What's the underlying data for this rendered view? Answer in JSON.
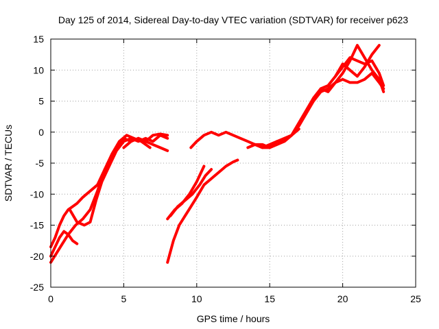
{
  "chart_data": {
    "type": "line",
    "title": "Day 125 of 2014, Sidereal Day-to-day VTEC variation (SDTVAR) for receiver p623",
    "xlabel": "GPS time / hours",
    "ylabel": "SDTVAR / TECUs",
    "xlim": [
      0,
      25
    ],
    "ylim": [
      -25,
      15
    ],
    "xticks": [
      0,
      5,
      10,
      15,
      20,
      25
    ],
    "yticks": [
      -25,
      -20,
      -15,
      -10,
      -5,
      0,
      5,
      10,
      15
    ],
    "grid": true,
    "legend": "none",
    "colors": {
      "series": "#ff0000",
      "grid": "#a0a0a0",
      "axis": "#000000"
    },
    "series": [
      {
        "x": [
          0.0,
          0.3,
          0.6,
          0.9,
          1.2,
          1.5,
          1.8,
          2.2,
          2.7,
          3.2,
          3.7,
          4.2,
          4.7,
          5.0,
          5.5,
          6.0,
          6.5
        ],
        "y": [
          -18.5,
          -17.0,
          -15.0,
          -13.5,
          -12.5,
          -12.0,
          -11.5,
          -10.5,
          -9.5,
          -8.5,
          -6.0,
          -4.0,
          -2.0,
          -1.0,
          -1.5,
          -1.0,
          -1.5
        ]
      },
      {
        "x": [
          0.0,
          0.4,
          0.8,
          1.2,
          1.7,
          2.2,
          2.7,
          3.2,
          3.7,
          4.2,
          4.7,
          5.2,
          5.7,
          6.2,
          6.8
        ],
        "y": [
          -21.0,
          -19.5,
          -18.0,
          -16.5,
          -15.0,
          -14.0,
          -12.5,
          -9.5,
          -6.0,
          -3.5,
          -1.5,
          -0.5,
          -1.0,
          -1.5,
          -2.5
        ]
      },
      {
        "x": [
          0.0,
          0.3,
          0.6,
          0.9,
          1.2,
          1.5,
          1.8
        ],
        "y": [
          -20.0,
          -18.5,
          -17.0,
          -16.0,
          -16.5,
          -17.5,
          -18.0
        ]
      },
      {
        "x": [
          1.3,
          1.8,
          2.3,
          2.7,
          3.1,
          3.5,
          4.0,
          4.5,
          5.0,
          5.5,
          6.0,
          6.5,
          7.0,
          7.5,
          8.0
        ],
        "y": [
          -12.5,
          -14.5,
          -15.0,
          -14.5,
          -11.0,
          -8.0,
          -5.5,
          -3.0,
          -1.5,
          -1.0,
          -1.5,
          -1.0,
          -1.5,
          -0.5,
          -1.0
        ]
      },
      {
        "x": [
          5.0,
          5.5,
          6.0,
          6.5,
          7.0,
          7.5,
          8.0
        ],
        "y": [
          -2.5,
          -1.5,
          -1.0,
          -1.5,
          -0.5,
          -0.3,
          -0.5
        ]
      },
      {
        "x": [
          6.0,
          6.5,
          7.0,
          7.5,
          8.0
        ],
        "y": [
          -1.0,
          -1.5,
          -2.0,
          -2.5,
          -3.0
        ]
      },
      {
        "x": [
          8.0,
          8.4,
          8.8,
          9.2,
          9.6,
          10.0,
          10.5,
          11.0,
          11.5,
          12.0,
          12.5,
          12.8
        ],
        "y": [
          -21.0,
          -17.5,
          -15.0,
          -13.5,
          -12.0,
          -10.5,
          -8.5,
          -7.5,
          -6.5,
          -5.5,
          -4.8,
          -4.5
        ]
      },
      {
        "x": [
          8.0,
          8.5,
          9.0,
          9.5,
          10.0,
          10.5
        ],
        "y": [
          -14.0,
          -12.5,
          -11.5,
          -10.0,
          -8.0,
          -5.5
        ]
      },
      {
        "x": [
          8.2,
          8.7,
          9.2,
          9.7,
          10.2,
          10.6,
          11.0
        ],
        "y": [
          -13.5,
          -12.0,
          -11.0,
          -10.0,
          -8.5,
          -7.0,
          -6.0
        ]
      },
      {
        "x": [
          9.6,
          10.0,
          10.5,
          11.0,
          11.5,
          12.0,
          12.5,
          13.0,
          13.5,
          14.0,
          14.5,
          15.0,
          15.5,
          16.0,
          16.5,
          17.0
        ],
        "y": [
          -2.5,
          -1.5,
          -0.5,
          0.0,
          -0.5,
          0.0,
          -0.5,
          -1.0,
          -1.5,
          -2.0,
          -2.0,
          -2.5,
          -2.0,
          -1.5,
          -0.5,
          0.5
        ]
      },
      {
        "x": [
          13.5,
          14.0,
          14.5,
          15.0,
          15.5,
          16.0,
          16.5
        ],
        "y": [
          -2.5,
          -2.0,
          -2.5,
          -2.5,
          -1.5,
          -1.5,
          -0.5
        ]
      },
      {
        "x": [
          14.0,
          14.5,
          15.0,
          15.5,
          16.0,
          16.5,
          17.0,
          17.5,
          18.0,
          18.5,
          19.0,
          19.5,
          20.0,
          20.5,
          21.0,
          21.5,
          22.0,
          22.5,
          22.8
        ],
        "y": [
          -2.0,
          -2.5,
          -2.0,
          -1.5,
          -1.0,
          -0.5,
          1.0,
          3.0,
          5.0,
          6.5,
          7.0,
          8.0,
          8.5,
          8.0,
          8.0,
          8.5,
          9.5,
          8.0,
          7.0
        ]
      },
      {
        "x": [
          16.5,
          17.0,
          17.5,
          18.0,
          18.5,
          19.0,
          19.5,
          20.0,
          20.5,
          21.0,
          21.5,
          22.0,
          22.5,
          22.8
        ],
        "y": [
          -0.5,
          1.5,
          3.5,
          5.5,
          7.0,
          7.5,
          9.0,
          10.5,
          12.0,
          11.5,
          11.0,
          11.5,
          9.5,
          7.5
        ]
      },
      {
        "x": [
          18.0,
          18.5,
          19.0,
          19.5,
          20.0,
          20.5,
          21.0,
          21.5,
          22.0,
          22.5,
          22.8
        ],
        "y": [
          5.0,
          7.0,
          6.5,
          8.0,
          9.5,
          11.5,
          14.0,
          12.0,
          10.0,
          8.5,
          6.5
        ]
      },
      {
        "x": [
          19.5,
          20.0,
          20.5,
          21.0,
          21.5,
          22.0,
          22.5
        ],
        "y": [
          9.0,
          11.0,
          10.0,
          9.0,
          10.5,
          12.5,
          14.0
        ]
      }
    ]
  }
}
